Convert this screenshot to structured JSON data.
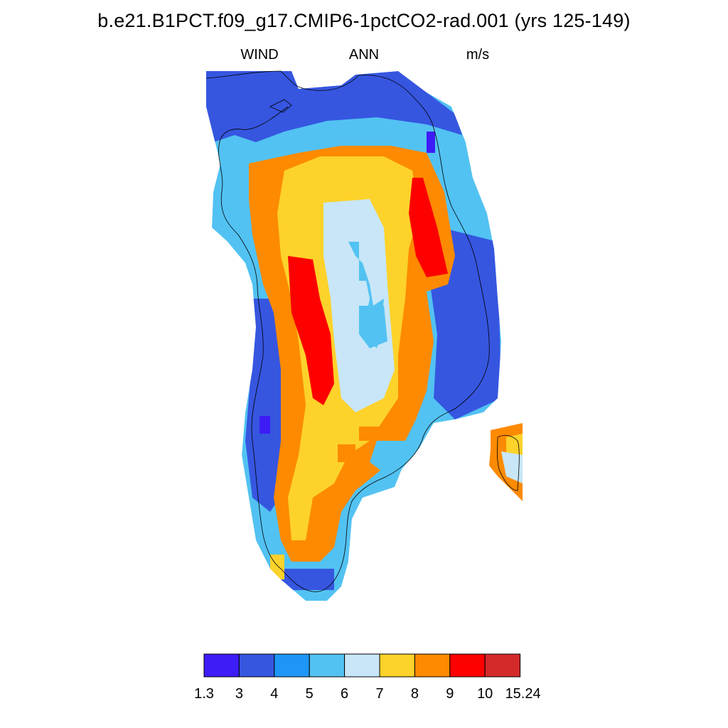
{
  "title": "b.e21.B1PCT.f09_g17.CMIP6-1pctCO2-rad.001 (yrs 125-149)",
  "subtitle": {
    "left": "WIND",
    "center": "ANN",
    "right": "m/s"
  },
  "colorbar": {
    "colors": [
      "#3d1cf5",
      "#3656e0",
      "#1e96f8",
      "#52c2f2",
      "#c8e6f7",
      "#fdd22a",
      "#fd8a00",
      "#fd0000",
      "#d42a2a"
    ],
    "labels": [
      "1.3",
      "3",
      "4",
      "5",
      "6",
      "7",
      "8",
      "9",
      "10",
      "15.24"
    ]
  },
  "map_data": {
    "variable": "WIND",
    "units": "m/s",
    "period": "ANN",
    "region": "Greenland",
    "pattern": "high speeds (8-10+ m/s) along ice-sheet slopes, weak centre (6-7 m/s), low speeds (3-5 m/s) along coast"
  }
}
